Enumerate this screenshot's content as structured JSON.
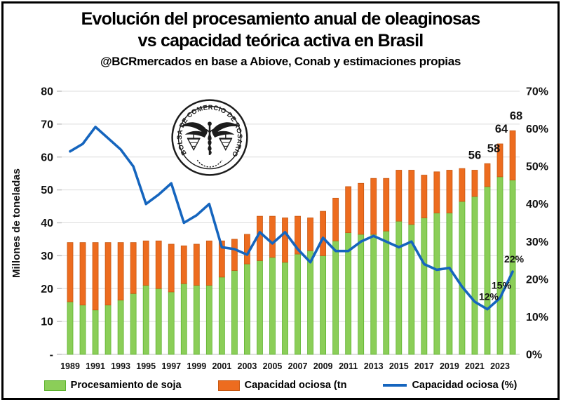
{
  "title": {
    "line1": "Evolución del procesamiento anual de oleaginosas",
    "line2": "vs capacidad teórica activa en Brasil",
    "subtitle": "@BCRmercados en base a Abiove, Conab y estimaciones propias"
  },
  "logo": {
    "text": "BOLSA DE COMERCIO DE ROSARIO"
  },
  "colors": {
    "bar_green": "#8BCE58",
    "bar_green_edge": "#5EB32F",
    "bar_orange": "#ED6C1F",
    "bar_orange_edge": "#C75812",
    "line_blue": "#1565BE",
    "grid": "#DCDCDC",
    "axis": "#BFBFBF",
    "text": "#111111"
  },
  "chart_data": {
    "type": "combo: stacked-bar + line",
    "years": [
      1989,
      1990,
      1991,
      1992,
      1993,
      1994,
      1995,
      1996,
      1997,
      1998,
      1999,
      2000,
      2001,
      2002,
      2003,
      2004,
      2005,
      2006,
      2007,
      2008,
      2009,
      2010,
      2011,
      2012,
      2013,
      2014,
      2015,
      2016,
      2017,
      2018,
      2019,
      2020,
      2021,
      2022,
      2023,
      2024
    ],
    "series": [
      {
        "name": "Procesamiento de soja",
        "type": "bar",
        "stack": "base",
        "unit": "millones de toneladas",
        "axis": "left",
        "values": [
          16,
          15,
          13.5,
          15,
          16.5,
          18.5,
          21,
          20,
          19,
          21.5,
          21,
          21,
          23.5,
          25.5,
          27.5,
          28.5,
          29.5,
          28,
          30.5,
          31.5,
          30,
          34.5,
          37,
          36.5,
          36.5,
          37.5,
          40.5,
          39.5,
          41.5,
          43,
          43,
          46.5,
          48,
          51,
          54,
          53
        ]
      },
      {
        "name": "Capacidad ociosa (tn",
        "type": "bar",
        "stack": "top",
        "unit": "millones de toneladas",
        "axis": "left",
        "values": [
          18,
          19,
          20.5,
          19,
          17.5,
          15.5,
          13.5,
          14.5,
          14.5,
          11.5,
          12.5,
          13.5,
          11,
          9.5,
          9,
          13.5,
          12.5,
          13.5,
          11.5,
          10,
          13.5,
          13,
          14,
          15.5,
          17,
          16,
          15.5,
          16.5,
          13,
          12.5,
          13,
          10,
          8,
          7,
          10,
          15
        ]
      },
      {
        "name": "Capacidad ociosa (%)",
        "type": "line",
        "unit": "%",
        "axis": "right",
        "values": [
          54,
          56,
          60.5,
          57.5,
          54.5,
          50,
          40,
          42.5,
          45.5,
          35,
          37,
          40,
          28.5,
          28,
          26.5,
          32.5,
          29.5,
          32.5,
          28,
          24.5,
          31,
          27.5,
          27.5,
          30,
          31.5,
          30,
          28.5,
          30,
          24,
          22.5,
          23,
          18,
          14,
          12,
          15,
          22
        ]
      }
    ],
    "total_capacity": [
      34,
      34,
      34,
      34,
      34,
      34,
      34.5,
      34.5,
      33.5,
      33,
      33.5,
      34.5,
      34.5,
      35,
      36.5,
      42,
      42,
      41.5,
      42,
      41.5,
      43.5,
      47.5,
      51,
      52,
      53.5,
      53.5,
      56,
      56,
      54.5,
      55.5,
      56,
      56.5,
      56,
      58,
      64,
      68
    ],
    "left_axis": {
      "title": "Millones de toneladas",
      "min": 0,
      "max": 80,
      "tick_labels": [
        "80",
        "70",
        "60",
        "50",
        "40",
        "30",
        "20",
        "10",
        "-"
      ]
    },
    "right_axis": {
      "min": 0,
      "max": 70,
      "tick_labels": [
        "70%",
        "60%",
        "50%",
        "40%",
        "30%",
        "20%",
        "10%",
        "0%"
      ]
    },
    "x_axis": {
      "labeled_every": 2
    },
    "bar_labels": [
      {
        "year": 2021,
        "text": "56",
        "dx": 0
      },
      {
        "year": 2022,
        "text": "58",
        "dx": 9
      },
      {
        "year": 2023,
        "text": "64",
        "dx": 2
      },
      {
        "year": 2024,
        "text": "68",
        "dx": 5
      }
    ],
    "line_labels": [
      {
        "year": 2022,
        "text": "12%"
      },
      {
        "year": 2023,
        "text": "15%"
      },
      {
        "year": 2024,
        "text": "22%"
      }
    ],
    "grid": true,
    "legend_position": "bottom"
  },
  "legend": [
    {
      "label": "Procesamiento de soja",
      "swatch": "green-rect"
    },
    {
      "label": "Capacidad ociosa (tn",
      "swatch": "orange-rect"
    },
    {
      "label": "Capacidad ociosa (%)",
      "swatch": "blue-line"
    }
  ]
}
